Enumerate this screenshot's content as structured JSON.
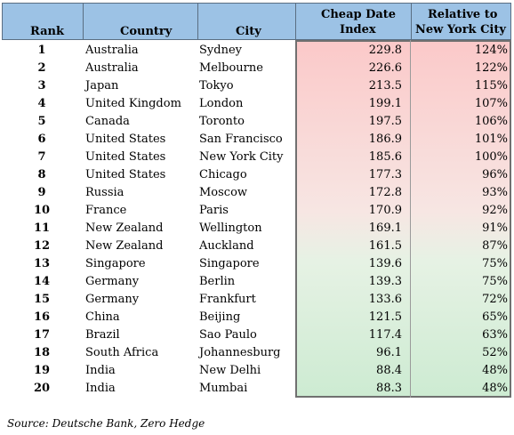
{
  "headers": {
    "rank": "Rank",
    "country": "Country",
    "city": "City",
    "index_line1": "Cheap Date",
    "index_line2": "Index",
    "relative_line1": "Relative to",
    "relative_line2": "New York City"
  },
  "chart_data": {
    "type": "table",
    "columns": [
      "Rank",
      "Country",
      "City",
      "Cheap Date Index",
      "Relative to New York City"
    ],
    "rows": [
      {
        "rank": "1",
        "country": "Australia",
        "city": "Sydney",
        "index": "229.8",
        "relative": "124%"
      },
      {
        "rank": "2",
        "country": "Australia",
        "city": "Melbourne",
        "index": "226.6",
        "relative": "122%"
      },
      {
        "rank": "3",
        "country": "Japan",
        "city": "Tokyo",
        "index": "213.5",
        "relative": "115%"
      },
      {
        "rank": "4",
        "country": "United Kingdom",
        "city": "London",
        "index": "199.1",
        "relative": "107%"
      },
      {
        "rank": "5",
        "country": "Canada",
        "city": "Toronto",
        "index": "197.5",
        "relative": "106%"
      },
      {
        "rank": "6",
        "country": "United States",
        "city": "San Francisco",
        "index": "186.9",
        "relative": "101%"
      },
      {
        "rank": "7",
        "country": "United States",
        "city": "New York City",
        "index": "185.6",
        "relative": "100%"
      },
      {
        "rank": "8",
        "country": "United States",
        "city": "Chicago",
        "index": "177.3",
        "relative": "96%"
      },
      {
        "rank": "9",
        "country": "Russia",
        "city": "Moscow",
        "index": "172.8",
        "relative": "93%"
      },
      {
        "rank": "10",
        "country": "France",
        "city": "Paris",
        "index": "170.9",
        "relative": "92%"
      },
      {
        "rank": "11",
        "country": "New Zealand",
        "city": "Wellington",
        "index": "169.1",
        "relative": "91%"
      },
      {
        "rank": "12",
        "country": "New Zealand",
        "city": "Auckland",
        "index": "161.5",
        "relative": "87%"
      },
      {
        "rank": "13",
        "country": "Singapore",
        "city": "Singapore",
        "index": "139.6",
        "relative": "75%"
      },
      {
        "rank": "14",
        "country": "Germany",
        "city": "Berlin",
        "index": "139.3",
        "relative": "75%"
      },
      {
        "rank": "15",
        "country": "Germany",
        "city": "Frankfurt",
        "index": "133.6",
        "relative": "72%"
      },
      {
        "rank": "16",
        "country": "China",
        "city": "Beijing",
        "index": "121.5",
        "relative": "65%"
      },
      {
        "rank": "17",
        "country": "Brazil",
        "city": "Sao Paulo",
        "index": "117.4",
        "relative": "63%"
      },
      {
        "rank": "18",
        "country": "South Africa",
        "city": "Johannesburg",
        "index": "96.1",
        "relative": "52%"
      },
      {
        "rank": "19",
        "country": "India",
        "city": "New Delhi",
        "index": "88.4",
        "relative": "48%"
      },
      {
        "rank": "20",
        "country": "India",
        "city": "Mumbai",
        "index": "88.3",
        "relative": "48%"
      }
    ]
  },
  "colors": {
    "header_fill": "#9cc2e5",
    "gradient_top": "#fbc9c9",
    "gradient_bottom": "#cdebd2"
  },
  "source": "Source: Deutsche Bank, Zero Hedge"
}
